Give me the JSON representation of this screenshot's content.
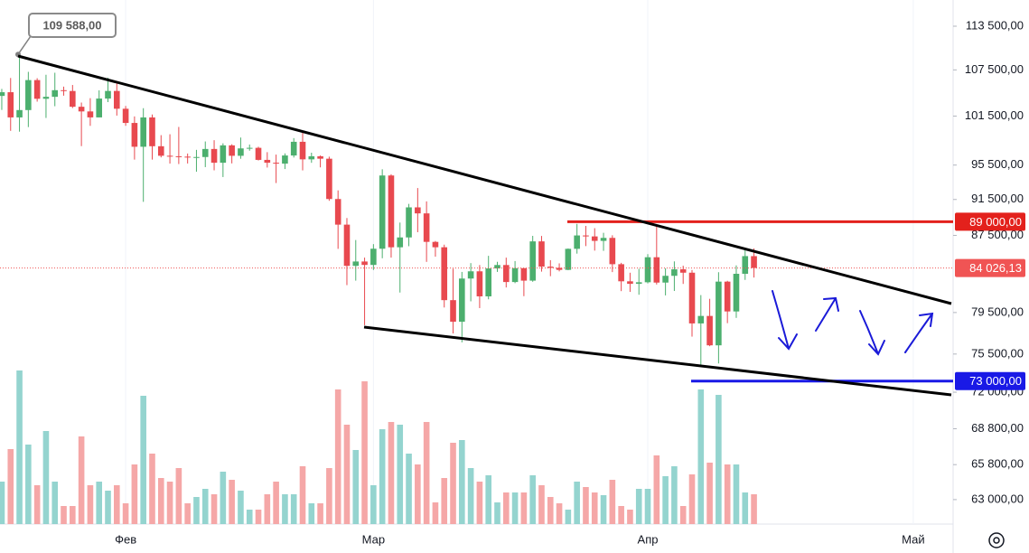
{
  "chart_data": {
    "type": "candlestick",
    "x": [
      0,
      1,
      2,
      3,
      4,
      5,
      6,
      7,
      8,
      9,
      10,
      11,
      12,
      13,
      14,
      15,
      16,
      17,
      18,
      19,
      20,
      21,
      22,
      23,
      24,
      25,
      26,
      27,
      28,
      29,
      30,
      31,
      32,
      33,
      34,
      35,
      36,
      37,
      38,
      39,
      40,
      41,
      42,
      43,
      44,
      45,
      46,
      47,
      48,
      49,
      50,
      51,
      52,
      53,
      54,
      55,
      56,
      57,
      58,
      59,
      60,
      61,
      62,
      63,
      64,
      65,
      66,
      67,
      68,
      69,
      70,
      71,
      72,
      73,
      74,
      75,
      76,
      77,
      78,
      79,
      80,
      81,
      82,
      83,
      84,
      85
    ],
    "open": [
      104077,
      104556,
      101331,
      102260,
      106144,
      103706,
      103960,
      104820,
      104714,
      102682,
      102087,
      101332,
      103734,
      104722,
      102429,
      100636,
      97700,
      101328,
      97763,
      96613,
      96554,
      96506,
      96444,
      96462,
      97430,
      95778,
      97869,
      96608,
      97500,
      97569,
      96118,
      95780,
      95671,
      96644,
      98305,
      96181,
      96551,
      96258,
      91552,
      88680,
      84250,
      84708,
      84349,
      86064,
      94270,
      86220,
      87281,
      90607,
      89931,
      86801,
      86222,
      80734,
      78595,
      82932,
      83680,
      81115,
      83983,
      84338,
      82574,
      84010,
      82715,
      86854,
      84167,
      84043,
      83832,
      86054,
      87498,
      87392,
      86909,
      87232,
      84424,
      82648,
      82390,
      82550,
      85158,
      82516,
      83213,
      83889,
      83537,
      78430,
      79163,
      76322,
      82615,
      79607,
      83423,
      85276
    ],
    "high": [
      104988,
      106422,
      109588,
      107240,
      106394,
      106850,
      107120,
      105286,
      105500,
      103221,
      103784,
      104800,
      106457,
      106012,
      102783,
      101457,
      102500,
      101700,
      99120,
      99231,
      100137,
      96880,
      97324,
      98345,
      98500,
      98119,
      98000,
      98826,
      97972,
      97704,
      97046,
      96753,
      96899,
      98756,
      99508,
      96980,
      96650,
      96503,
      92541,
      89414,
      87000,
      85120,
      86558,
      95000,
      94416,
      88911,
      91000,
      92811,
      91283,
      86897,
      86500,
      83955,
      83617,
      84539,
      84336,
      85309,
      84676,
      85117,
      84756,
      84021,
      87453,
      87443,
      84850,
      84513,
      86094,
      88765,
      88542,
      88292,
      87786,
      87515,
      84567,
      83534,
      83943,
      85487,
      88500,
      83998,
      84720,
      84266,
      83817,
      81243,
      80867,
      83588,
      82700,
      84300,
      85905,
      86100
    ],
    "low": [
      102277,
      99651,
      99550,
      100119,
      103339,
      101262,
      102750,
      104106,
      102520,
      97777,
      100273,
      101328,
      103278,
      101560,
      100279,
      96150,
      91231,
      96150,
      96416,
      95676,
      95620,
      95688,
      94713,
      95256,
      94876,
      94088,
      95700,
      96252,
      97223,
      96046,
      95205,
      93388,
      95029,
      96400,
      94871,
      95770,
      95227,
      91349,
      86050,
      82256,
      82716,
      78258,
      83824,
      85050,
      85117,
      81500,
      86334,
      87852,
      84667,
      85218,
      80000,
      77459,
      76606,
      80614,
      79939,
      80818,
      83618,
      82017,
      82457,
      81134,
      82600,
      83647,
      83175,
      83674,
      83794,
      85541,
      86346,
      85862,
      85837,
      83600,
      81644,
      81565,
      81279,
      82432,
      82320,
      81211,
      81659,
      82379,
      77153,
      74508,
      76239,
      74620,
      78456,
      78971,
      82792,
      83034
    ],
    "close": [
      104556,
      101331,
      102260,
      106144,
      103706,
      103960,
      104820,
      104714,
      102682,
      102087,
      101332,
      103734,
      104722,
      102429,
      100636,
      97700,
      101328,
      97763,
      96613,
      96554,
      96506,
      96444,
      96462,
      97430,
      95778,
      97869,
      96608,
      97500,
      97569,
      96118,
      95780,
      95671,
      96644,
      98305,
      96181,
      96551,
      96258,
      91552,
      88680,
      84250,
      84708,
      84349,
      86064,
      94270,
      86220,
      87281,
      90607,
      89931,
      86801,
      86222,
      80734,
      78595,
      82932,
      83680,
      81115,
      83983,
      84338,
      82574,
      84010,
      82715,
      86854,
      84167,
      84043,
      83832,
      86054,
      87498,
      87392,
      86909,
      87232,
      84424,
      82648,
      82390,
      82550,
      85158,
      82516,
      83213,
      83889,
      83537,
      78430,
      79163,
      76322,
      82615,
      79607,
      83423,
      85276,
      84026.13
    ],
    "volume": [
      47,
      83,
      170,
      88,
      43,
      103,
      47,
      20,
      20,
      97,
      43,
      47,
      37,
      43,
      23,
      66,
      142,
      78,
      51,
      47,
      62,
      23,
      30,
      39,
      33,
      58,
      49,
      37,
      16,
      16,
      33,
      47,
      33,
      33,
      64,
      23,
      23,
      62,
      149,
      110,
      82,
      158,
      43,
      105,
      113,
      110,
      78,
      66,
      113,
      24,
      51,
      90,
      93,
      62,
      47,
      54,
      24,
      35,
      35,
      35,
      54,
      43,
      30,
      23,
      16,
      47,
      41,
      35,
      32,
      49,
      20,
      16,
      39,
      39,
      76,
      53,
      64,
      20,
      55,
      149,
      68,
      143,
      66,
      66,
      35,
      33
    ],
    "up_color": "#4caf6e",
    "down_color": "#e8494f",
    "up_volume_color": "#94d4cf",
    "down_volume_color": "#f5a7a7",
    "xlim": [
      -0.2,
      107.3
    ],
    "xticks": [
      {
        "value": 14,
        "label": "Фев"
      },
      {
        "value": 42,
        "label": "Мар"
      },
      {
        "value": 73,
        "label": "Апр"
      },
      {
        "value": 103,
        "label": "Май"
      }
    ],
    "ylim": [
      61110,
      117260
    ],
    "log_scale": true,
    "yticks": [
      {
        "value": 113500,
        "label": "113 500,00"
      },
      {
        "value": 107500,
        "label": "107 500,00"
      },
      {
        "value": 101500,
        "label": "101 500,00"
      },
      {
        "value": 95500,
        "label": "95 500,00"
      },
      {
        "value": 91500,
        "label": "91 500,00"
      },
      {
        "value": 87500,
        "label": "87 500,00"
      },
      {
        "value": 79500,
        "label": "79 500,00"
      },
      {
        "value": 75500,
        "label": "75 500,00"
      },
      {
        "value": 72000,
        "label": "72 000,00"
      },
      {
        "value": 68800,
        "label": "68 800,00"
      },
      {
        "value": 65800,
        "label": "65 800,00"
      },
      {
        "value": 63000,
        "label": "63 000,00"
      }
    ],
    "price_lines": [
      {
        "value": 89000,
        "label": "89 000,00",
        "color": "#e3211c"
      },
      {
        "value": 73000,
        "label": "73 000,00",
        "color": "#1919e6"
      }
    ],
    "last_price": {
      "value": 84026.13,
      "label": "84 026,13",
      "color": "#f05454"
    },
    "annotation": {
      "value": 109588,
      "label": "109 588,00"
    }
  }
}
